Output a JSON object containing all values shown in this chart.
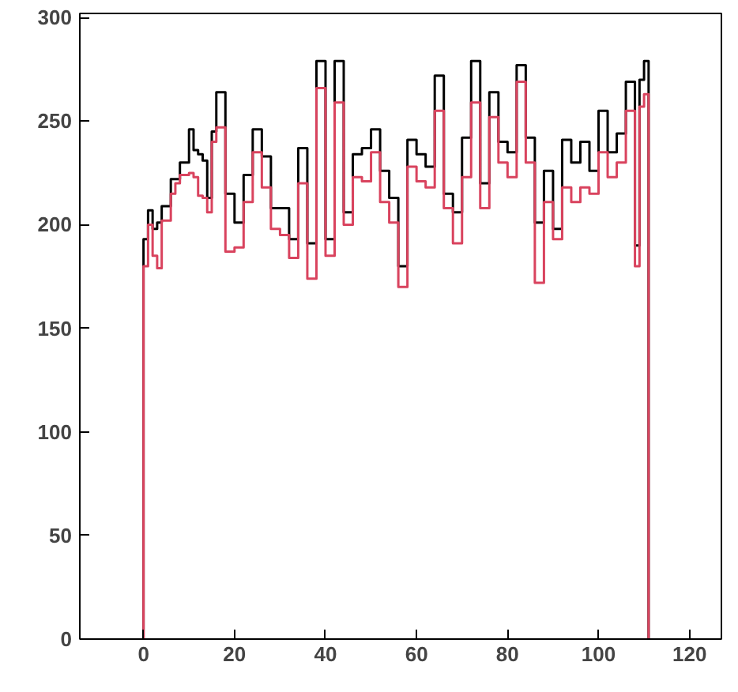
{
  "chart_data": {
    "type": "histogram",
    "bins": [
      0,
      1,
      2,
      3,
      4,
      5,
      6,
      7,
      8,
      9,
      10,
      11,
      12,
      13,
      14,
      15,
      16,
      18,
      20,
      22,
      24,
      26,
      28,
      30,
      32,
      34,
      36,
      38,
      40,
      42,
      44,
      46,
      48,
      50,
      52,
      54,
      56,
      58,
      60,
      62,
      64,
      66,
      68,
      70,
      72,
      74,
      76,
      78,
      80,
      82,
      84,
      86,
      88,
      90,
      92,
      94,
      96,
      98,
      100,
      102,
      104,
      106,
      108,
      109,
      110,
      111
    ],
    "series": [
      {
        "color": "#000000",
        "values": [
          193,
          207,
          198,
          201,
          209,
          209,
          222,
          222,
          230,
          230,
          246,
          236,
          234,
          231,
          213,
          245,
          264,
          215,
          201,
          224,
          246,
          233,
          208,
          208,
          193,
          237,
          191,
          279,
          193,
          279,
          206,
          234,
          237,
          246,
          226,
          213,
          180,
          241,
          234,
          228,
          272,
          215,
          206,
          242,
          279,
          220,
          264,
          240,
          235,
          277,
          242,
          201,
          226,
          198,
          241,
          230,
          240,
          226,
          255,
          235,
          244,
          269,
          190,
          270,
          279
        ]
      },
      {
        "color": "#d9435e",
        "values": [
          180,
          200,
          185,
          179,
          202,
          202,
          215,
          220,
          224,
          224,
          225,
          223,
          214,
          213,
          206,
          240,
          247,
          187,
          189,
          211,
          235,
          218,
          198,
          195,
          184,
          220,
          174,
          266,
          185,
          259,
          200,
          223,
          221,
          235,
          211,
          201,
          170,
          228,
          221,
          218,
          255,
          208,
          191,
          223,
          259,
          208,
          252,
          230,
          223,
          269,
          230,
          172,
          211,
          193,
          218,
          211,
          218,
          215,
          235,
          223,
          230,
          255,
          180,
          257,
          263
        ]
      }
    ],
    "xlim": [
      -14,
      127
    ],
    "xticks": [
      0,
      20,
      40,
      60,
      80,
      100,
      120
    ],
    "ylim": [
      0,
      302
    ],
    "yticks": [
      0,
      50,
      100,
      150,
      200,
      250,
      300
    ],
    "grid": false
  }
}
